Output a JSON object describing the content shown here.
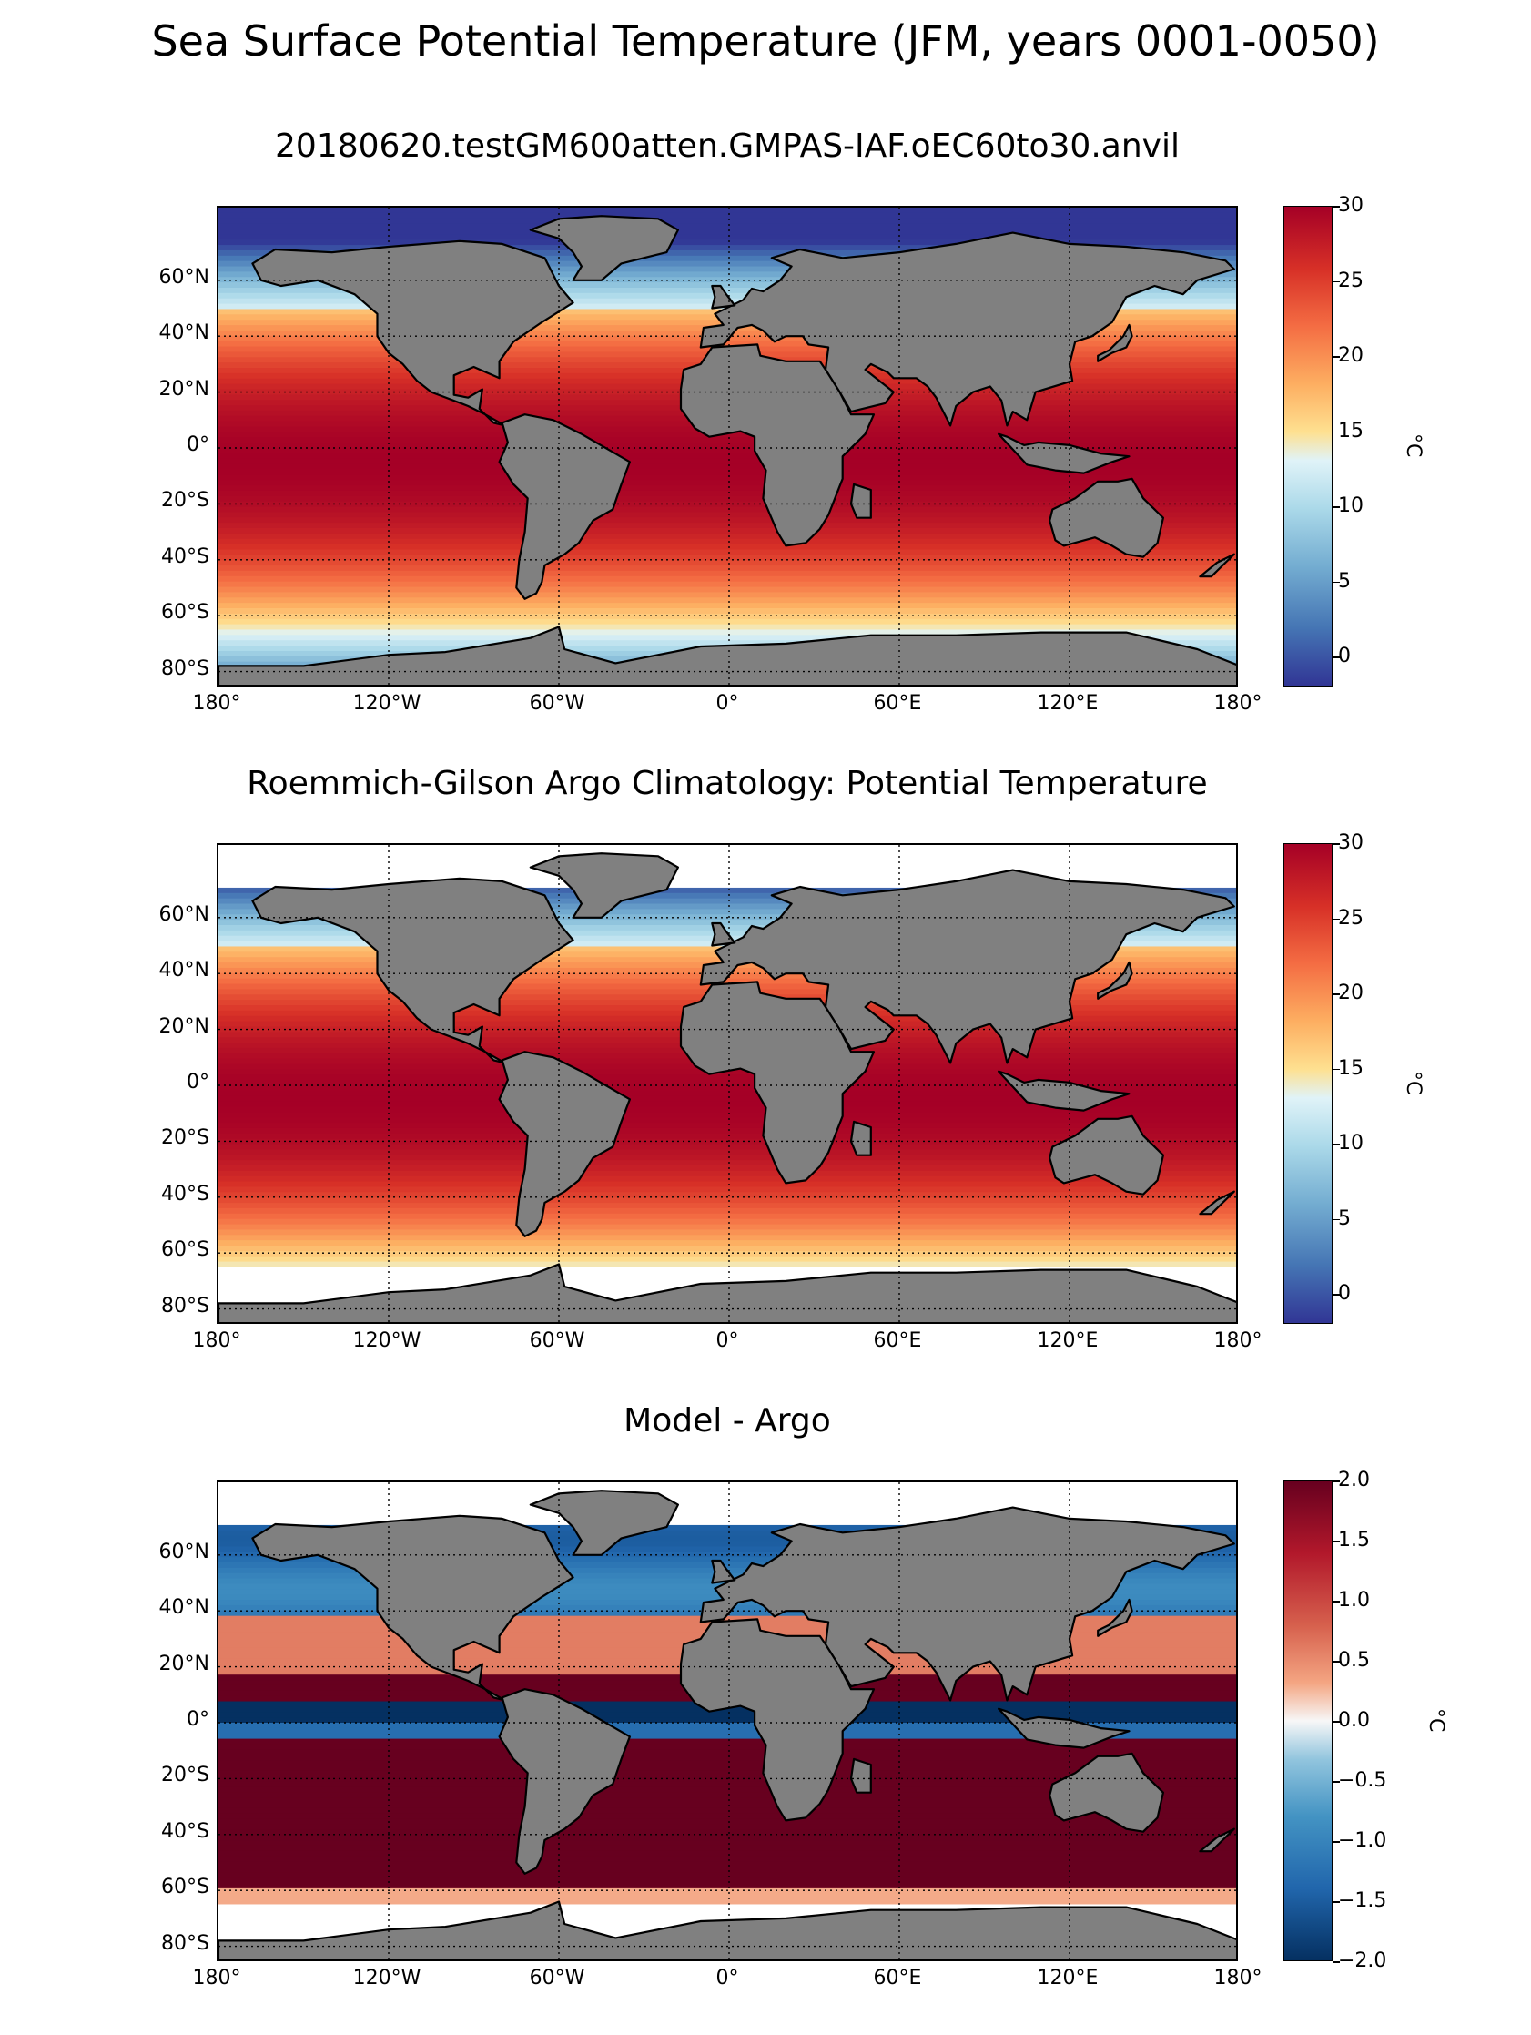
{
  "figure": {
    "suptitle": "Sea Surface Potential Temperature (JFM, years 0001-0050)"
  },
  "panels": [
    {
      "title": "20180620.testGM600atten.GMPAS-IAF.oEC60to30.anvil",
      "colorbar": {
        "label": "°C",
        "ticks": [
          "30",
          "25",
          "20",
          "15",
          "10",
          "5",
          "0"
        ],
        "range": [
          -2,
          30
        ],
        "colormap": "RdYlBu_r"
      },
      "field": "model SST"
    },
    {
      "title": "Roemmich-Gilson Argo Climatology: Potential Temperature",
      "colorbar": {
        "label": "°C",
        "ticks": [
          "30",
          "25",
          "20",
          "15",
          "10",
          "5",
          "0"
        ],
        "range": [
          -2,
          30
        ],
        "colormap": "RdYlBu_r"
      },
      "field": "Argo climatology SST"
    },
    {
      "title": "Model - Argo",
      "colorbar": {
        "label": "°C",
        "ticks": [
          "2.0",
          "1.5",
          "1.0",
          "0.5",
          "0.0",
          "−0.5",
          "−1.0",
          "−1.5",
          "−2.0"
        ],
        "range": [
          -2,
          2
        ],
        "colormap": "RdBu_r (diverging)"
      },
      "field": "difference"
    }
  ],
  "axes": {
    "lat_labels": [
      "60°N",
      "40°N",
      "20°N",
      "0°",
      "20°S",
      "40°S",
      "60°S",
      "80°S"
    ],
    "lon_labels": [
      "180°",
      "120°W",
      "60°W",
      "0°",
      "60°E",
      "120°E",
      "180°"
    ]
  },
  "colors": {
    "land": "#808080",
    "missing": "#ffffff",
    "warm": "#a50026",
    "cold": "#313695",
    "diff_pos": "#67001f",
    "diff_neg": "#053061"
  }
}
